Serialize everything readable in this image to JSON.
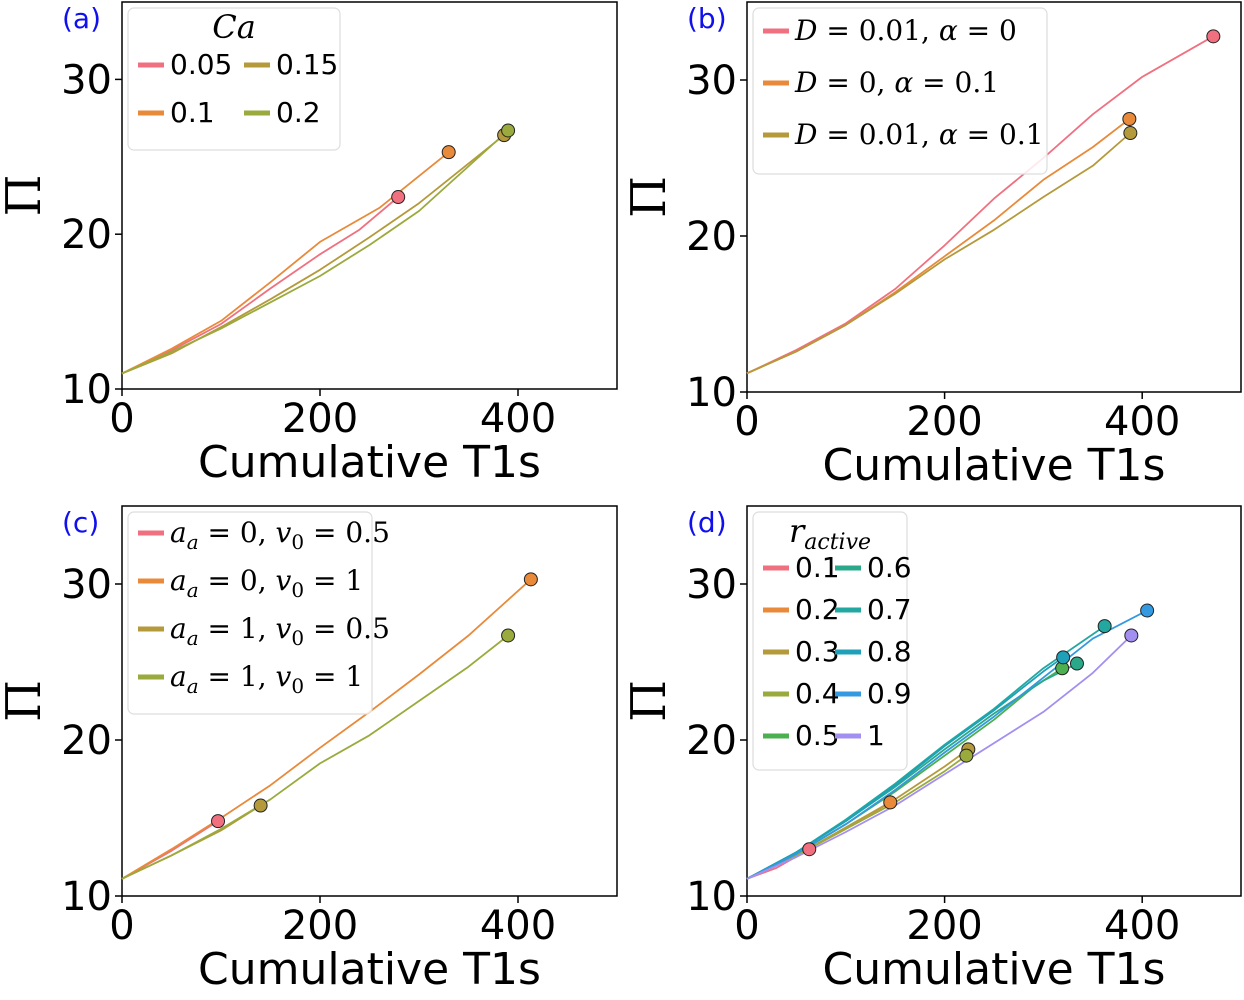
{
  "chart_data": [
    {
      "panel_label": "(a)",
      "type": "line",
      "xlabel": "Cumulative T1s",
      "ylabel": "Π",
      "xlim": [
        0,
        500
      ],
      "ylim": [
        10,
        35
      ],
      "xticks": [
        "0",
        "200",
        "400"
      ],
      "yticks": [
        "10",
        "20",
        "30"
      ],
      "grid": false,
      "legend": {
        "title": "Ca",
        "placement": "top-left",
        "columns": 2
      },
      "series": [
        {
          "name": "0.05",
          "color": "#f07080",
          "x": [
            0,
            50,
            100,
            150,
            200,
            240,
            279
          ],
          "y": [
            11.0,
            12.5,
            14.2,
            16.5,
            18.7,
            20.3,
            22.4
          ]
        },
        {
          "name": "0.1",
          "color": "#e88a3a",
          "x": [
            0,
            50,
            100,
            150,
            200,
            260,
            330
          ],
          "y": [
            11.0,
            12.6,
            14.4,
            16.9,
            19.5,
            21.7,
            25.3
          ]
        },
        {
          "name": "0.15",
          "color": "#b59a3c",
          "x": [
            0,
            50,
            100,
            150,
            200,
            250,
            300,
            386
          ],
          "y": [
            11.0,
            12.3,
            14.0,
            15.8,
            17.7,
            19.8,
            22.0,
            26.4
          ]
        },
        {
          "name": "0.2",
          "color": "#9aaa3c",
          "x": [
            0,
            50,
            100,
            150,
            200,
            250,
            300,
            390
          ],
          "y": [
            11.0,
            12.4,
            13.9,
            15.6,
            17.3,
            19.3,
            21.5,
            26.7
          ]
        }
      ]
    },
    {
      "panel_label": "(b)",
      "type": "line",
      "xlabel": "Cumulative T1s",
      "ylabel": "Π",
      "xlim": [
        0,
        500
      ],
      "ylim": [
        10,
        35
      ],
      "xticks": [
        "0",
        "200",
        "400"
      ],
      "yticks": [
        "10",
        "20",
        "30"
      ],
      "grid": false,
      "legend": {
        "placement": "top-left",
        "columns": 1
      },
      "series": [
        {
          "name": "D = 0.01, α = 0",
          "color": "#f07080",
          "x": [
            0,
            50,
            100,
            150,
            200,
            250,
            300,
            350,
            400,
            472
          ],
          "y": [
            11.2,
            12.7,
            14.4,
            16.6,
            19.4,
            22.4,
            25.0,
            27.8,
            30.2,
            32.8
          ]
        },
        {
          "name": "D = 0, α = 0.1",
          "color": "#e88a3a",
          "x": [
            0,
            50,
            100,
            150,
            200,
            250,
            300,
            350,
            387
          ],
          "y": [
            11.2,
            12.6,
            14.3,
            16.4,
            18.7,
            21.0,
            23.6,
            25.7,
            27.5
          ]
        },
        {
          "name": "D = 0.01, α = 0.1",
          "color": "#b59a3c",
          "x": [
            0,
            50,
            100,
            150,
            200,
            250,
            300,
            350,
            388
          ],
          "y": [
            11.2,
            12.6,
            14.3,
            16.3,
            18.5,
            20.4,
            22.5,
            24.5,
            26.6
          ]
        }
      ]
    },
    {
      "panel_label": "(c)",
      "type": "line",
      "xlabel": "Cumulative T1s",
      "ylabel": "Π",
      "xlim": [
        0,
        500
      ],
      "ylim": [
        10,
        35
      ],
      "xticks": [
        "0",
        "200",
        "400"
      ],
      "yticks": [
        "10",
        "20",
        "30"
      ],
      "grid": false,
      "legend": {
        "placement": "top-left",
        "columns": 1
      },
      "series": [
        {
          "name": "a_a = 0, v_0 = 0.5",
          "color": "#f07080",
          "x": [
            0,
            50,
            97
          ],
          "y": [
            11.1,
            12.9,
            14.8
          ]
        },
        {
          "name": "a_a = 0, v_0 = 1",
          "color": "#e88a3a",
          "x": [
            0,
            50,
            100,
            150,
            200,
            250,
            300,
            350,
            413
          ],
          "y": [
            11.1,
            13.0,
            15.0,
            17.1,
            19.5,
            21.8,
            24.2,
            26.7,
            30.3
          ]
        },
        {
          "name": "a_a = 1, v_0 = 0.5",
          "color": "#b59a3c",
          "x": [
            0,
            50,
            100,
            140
          ],
          "y": [
            11.1,
            12.6,
            14.2,
            15.8
          ]
        },
        {
          "name": "a_a = 1, v_0 = 1",
          "color": "#9aaa3c",
          "x": [
            0,
            50,
            100,
            150,
            200,
            250,
            300,
            350,
            390
          ],
          "y": [
            11.1,
            12.6,
            14.3,
            16.2,
            18.5,
            20.3,
            22.5,
            24.7,
            26.7
          ]
        }
      ]
    },
    {
      "panel_label": "(d)",
      "type": "line",
      "xlabel": "Cumulative T1s",
      "ylabel": "Π",
      "xlim": [
        0,
        500
      ],
      "ylim": [
        10,
        35
      ],
      "xticks": [
        "0",
        "200",
        "400"
      ],
      "yticks": [
        "10",
        "20",
        "30"
      ],
      "grid": false,
      "legend": {
        "title": "r_active",
        "placement": "top-left",
        "columns": 2
      },
      "series": [
        {
          "name": "0.1",
          "color": "#f07080",
          "x": [
            0,
            30,
            63
          ],
          "y": [
            11.1,
            11.8,
            13.0
          ]
        },
        {
          "name": "0.2",
          "color": "#e88a3a",
          "x": [
            0,
            50,
            100,
            145
          ],
          "y": [
            11.1,
            12.6,
            14.3,
            16.0
          ]
        },
        {
          "name": "0.3",
          "color": "#b59a3c",
          "x": [
            0,
            50,
            100,
            150,
            200,
            224
          ],
          "y": [
            11.1,
            12.6,
            14.4,
            16.2,
            18.3,
            19.4
          ]
        },
        {
          "name": "0.4",
          "color": "#9aaa3c",
          "x": [
            0,
            50,
            100,
            150,
            200,
            222
          ],
          "y": [
            11.1,
            12.6,
            14.3,
            16.0,
            18.0,
            19.0
          ]
        },
        {
          "name": "0.5",
          "color": "#4caf50",
          "x": [
            0,
            50,
            100,
            150,
            200,
            250,
            290,
            319
          ],
          "y": [
            11.1,
            12.7,
            14.6,
            16.7,
            19.0,
            21.3,
            23.4,
            24.6
          ]
        },
        {
          "name": "0.6",
          "color": "#2aa98a",
          "x": [
            0,
            50,
            100,
            150,
            200,
            250,
            300,
            334
          ],
          "y": [
            11.1,
            12.8,
            14.8,
            17.0,
            19.4,
            21.7,
            23.8,
            24.9
          ]
        },
        {
          "name": "0.7",
          "color": "#22a8a0",
          "x": [
            0,
            50,
            100,
            150,
            200,
            250,
            300,
            362
          ],
          "y": [
            11.1,
            12.8,
            14.9,
            17.2,
            19.7,
            22.0,
            24.6,
            27.3
          ]
        },
        {
          "name": "0.8",
          "color": "#1ea0b8",
          "x": [
            0,
            50,
            100,
            150,
            200,
            250,
            300,
            320
          ],
          "y": [
            11.1,
            12.8,
            14.8,
            17.1,
            19.6,
            21.9,
            24.4,
            25.3
          ]
        },
        {
          "name": "0.9",
          "color": "#3399e0",
          "x": [
            0,
            50,
            100,
            150,
            200,
            250,
            300,
            350,
            405
          ],
          "y": [
            11.1,
            12.7,
            14.6,
            16.8,
            19.2,
            21.5,
            24.0,
            26.5,
            28.3
          ]
        },
        {
          "name": "1",
          "color": "#a38ff0",
          "x": [
            0,
            50,
            100,
            150,
            200,
            250,
            300,
            350,
            389
          ],
          "y": [
            11.1,
            12.5,
            14.1,
            15.8,
            17.8,
            19.8,
            21.8,
            24.3,
            26.7
          ]
        }
      ]
    }
  ]
}
